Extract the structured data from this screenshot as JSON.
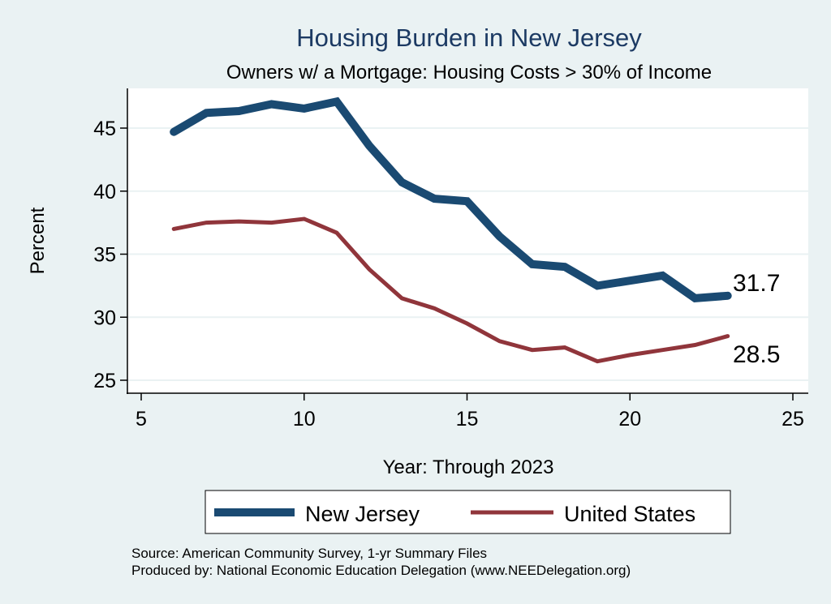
{
  "chart_data": {
    "type": "line",
    "title": "Housing Burden in New Jersey",
    "subtitle": "Owners w/ a Mortgage: Housing Costs > 30% of Income",
    "xlabel": "Year: Through 2023",
    "ylabel": "Percent",
    "xlim": [
      4.5,
      25.5
    ],
    "ylim": [
      24,
      48
    ],
    "xticks": [
      5,
      10,
      15,
      20,
      25
    ],
    "yticks": [
      25,
      30,
      35,
      40,
      45
    ],
    "grid": "horizontal",
    "x": [
      6,
      7,
      8,
      9,
      10,
      11,
      12,
      13,
      14,
      15,
      16,
      17,
      18,
      19,
      20,
      21,
      22,
      23
    ],
    "series": [
      {
        "name": "New Jersey",
        "color": "#1a4a72",
        "values": [
          44.7,
          46.2,
          46.35,
          46.9,
          46.55,
          47.1,
          43.6,
          40.7,
          39.4,
          39.2,
          36.4,
          34.2,
          34.0,
          32.5,
          32.9,
          33.3,
          31.5,
          31.7
        ],
        "end_label": "31.7"
      },
      {
        "name": "United States",
        "color": "#90353b",
        "values": [
          37.0,
          37.5,
          37.6,
          37.5,
          37.8,
          36.7,
          33.8,
          31.5,
          30.7,
          29.5,
          28.1,
          27.4,
          27.6,
          26.5,
          27.0,
          27.4,
          27.8,
          28.5
        ],
        "end_label": "28.5"
      }
    ],
    "legend": {
      "placement": "bottom",
      "entries": [
        "New Jersey",
        "United States"
      ]
    },
    "notes": [
      "Source: American Community Survey, 1-yr Summary Files",
      "Produced by: National Economic Education Delegation (www.NEEDelegation.org)"
    ]
  },
  "colors": {
    "background": "#eaf2f3",
    "plot_background": "#ffffff",
    "gridline": "#eaf2f3",
    "title": "#1c3a63"
  }
}
